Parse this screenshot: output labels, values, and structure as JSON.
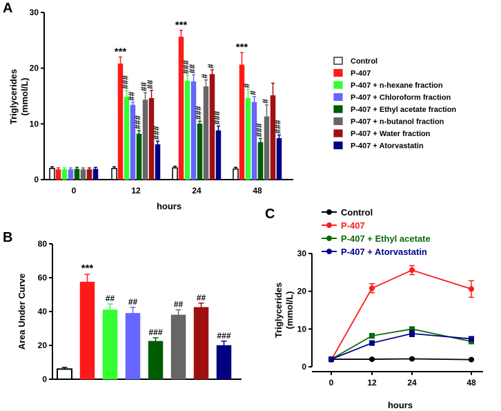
{
  "colors": {
    "Control": "#ffffff",
    "P-407": "#ff1a1a",
    "P-407 + n-hexane fraction": "#33ff33",
    "P-407 + Chloroform fraction": "#6666ff",
    "P-407 + Ethyl acetate fraction": "#005c00",
    "P-407 + n-butanol fraction": "#666666",
    "P-407 + Water fraction": "#a01010",
    "P-407 + Atorvastatin": "#000080"
  },
  "panels": {
    "a": "A",
    "b": "B",
    "c": "C"
  },
  "chart_data": [
    {
      "id": "A",
      "type": "bar",
      "ylabel_lines": [
        "Triglycerides",
        "(mmol/L)"
      ],
      "xlabel": "hours",
      "ylim": [
        0,
        30
      ],
      "yticks": [
        0,
        10,
        20,
        30
      ],
      "categories": [
        "0",
        "12",
        "24",
        "48"
      ],
      "series": [
        {
          "name": "Control",
          "values": [
            2.0,
            2.0,
            2.1,
            1.9
          ],
          "errors": [
            0.3,
            0.3,
            0.3,
            0.3
          ],
          "labels": [
            "",
            "",
            "",
            ""
          ]
        },
        {
          "name": "P-407",
          "values": [
            1.8,
            20.8,
            25.6,
            20.6
          ],
          "errors": [
            0.3,
            1.2,
            1.2,
            2.2
          ],
          "labels": [
            "",
            "***",
            "***",
            "***"
          ]
        },
        {
          "name": "P-407 + n-hexane fraction",
          "values": [
            1.8,
            14.8,
            17.7,
            14.6
          ],
          "errors": [
            0.3,
            1.2,
            1.0,
            1.6
          ],
          "labels": [
            "",
            "###",
            "###",
            "#"
          ]
        },
        {
          "name": "P-407 + Chloroform fraction",
          "values": [
            1.8,
            13.4,
            17.6,
            13.9
          ],
          "errors": [
            0.3,
            0.5,
            1.2,
            1.0
          ],
          "labels": [
            "",
            "##",
            "##",
            "#"
          ]
        },
        {
          "name": "P-407 + Ethyl acetate fraction",
          "values": [
            1.9,
            8.2,
            10.0,
            6.7
          ],
          "errors": [
            0.3,
            0.6,
            0.5,
            0.7
          ],
          "labels": [
            "",
            "###",
            "###",
            "###"
          ]
        },
        {
          "name": "P-407 + n-butanol fraction",
          "values": [
            1.8,
            14.3,
            16.7,
            11.3
          ],
          "errors": [
            0.3,
            1.3,
            1.2,
            2.1
          ],
          "labels": [
            "",
            "##",
            "#",
            "#"
          ]
        },
        {
          "name": "P-407 + Water fraction",
          "values": [
            1.8,
            14.6,
            18.9,
            15.1
          ],
          "errors": [
            0.3,
            1.4,
            0.8,
            2.2
          ],
          "labels": [
            "",
            "##",
            "#",
            ""
          ]
        },
        {
          "name": "P-407 + Atorvastatin",
          "values": [
            1.9,
            6.3,
            8.8,
            7.4
          ],
          "errors": [
            0.3,
            0.6,
            0.8,
            0.6
          ],
          "labels": [
            "",
            "###",
            "###",
            "###"
          ]
        }
      ],
      "legend_position": "right",
      "legend": [
        "Control",
        "P-407",
        "P-407 + n-hexane fraction",
        "P-407 + Chloroform fraction",
        "P-407 + Ethyl acetate fraction",
        "P-407 + n-butanol fraction",
        "P-407 + Water fraction",
        "P-407 + Atorvastatin"
      ]
    },
    {
      "id": "B",
      "type": "bar",
      "ylabel": "Area Under Curve",
      "ylim": [
        0,
        80
      ],
      "yticks": [
        0,
        20,
        40,
        60,
        80
      ],
      "categories": [
        "Control",
        "P-407",
        "P-407 + n-hexane fraction",
        "P-407 + Chloroform fraction",
        "P-407 + Ethyl acetate fraction",
        "P-407 + n-butanol fraction",
        "P-407 + Water fraction",
        "P-407 + Atorvastatin"
      ],
      "values": [
        6,
        57.5,
        41,
        39,
        22.5,
        38,
        42.5,
        20
      ],
      "errors": [
        1,
        4.5,
        3.5,
        3.5,
        2,
        3,
        2.5,
        2.5
      ],
      "labels": [
        "",
        "***",
        "##",
        "##",
        "###",
        "##",
        "##",
        "###"
      ]
    },
    {
      "id": "C",
      "type": "line",
      "ylabel_lines": [
        "Triglycerides",
        "(mmol/L)"
      ],
      "xlabel": "hours",
      "x": [
        0,
        12,
        24,
        48
      ],
      "xticks": [
        "0",
        "12",
        "24",
        "48"
      ],
      "ylim": [
        0,
        30
      ],
      "yticks": [
        0,
        10,
        20,
        30
      ],
      "legend_position": "top-left",
      "series": [
        {
          "name": "Control",
          "color": "#000000",
          "values": [
            2.0,
            2.0,
            2.1,
            1.9
          ],
          "errors": [
            0.2,
            0.2,
            0.2,
            0.2
          ]
        },
        {
          "name": "P-407",
          "color": "#ff1a1a",
          "values": [
            1.8,
            20.8,
            25.6,
            20.6
          ],
          "errors": [
            0.3,
            1.2,
            1.2,
            2.2
          ]
        },
        {
          "name": "P-407 + Ethyl acetate",
          "color": "#0a6b0a",
          "values": [
            2.0,
            8.2,
            10.0,
            6.7
          ],
          "errors": [
            0.2,
            0.6,
            0.5,
            0.6
          ]
        },
        {
          "name": "P-407 + Atorvastatin",
          "color": "#00008b",
          "values": [
            2.0,
            6.3,
            8.8,
            7.4
          ],
          "errors": [
            0.2,
            0.6,
            0.8,
            0.6
          ]
        }
      ]
    }
  ]
}
